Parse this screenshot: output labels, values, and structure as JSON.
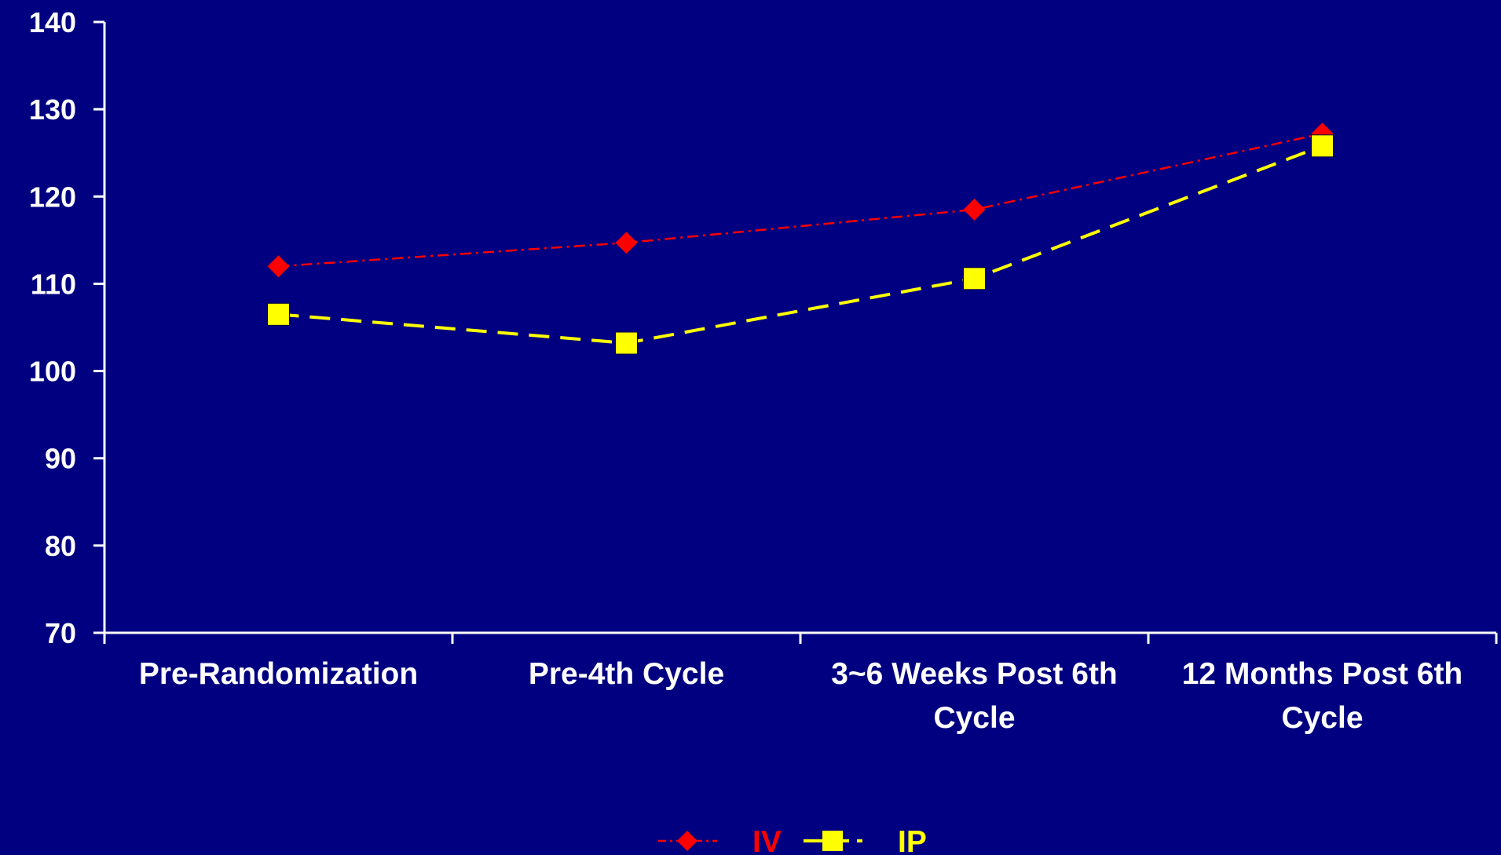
{
  "chart_data": {
    "type": "line",
    "title": "",
    "xlabel": "",
    "ylabel": "",
    "categories": [
      [
        "Pre-Randomization"
      ],
      [
        "Pre-4th Cycle"
      ],
      [
        "3~6 Weeks Post 6th",
        "Cycle"
      ],
      [
        "12 Months Post 6th",
        "Cycle"
      ]
    ],
    "ylim": [
      70,
      140
    ],
    "yticks": [
      70,
      80,
      90,
      100,
      110,
      120,
      130,
      140
    ],
    "grid": false,
    "legend_position": "bottom-center",
    "background_color": "#000080",
    "axis_color": "#ffffff",
    "series": [
      {
        "name": "IV",
        "values": [
          112,
          114.7,
          118.5,
          127.2
        ],
        "color": "#ff0000",
        "marker": "diamond",
        "line_style": "dash-dot"
      },
      {
        "name": "IP",
        "values": [
          106.5,
          103.2,
          110.6,
          125.8
        ],
        "color": "#ffff00",
        "marker": "square",
        "line_style": "dashed"
      }
    ]
  }
}
